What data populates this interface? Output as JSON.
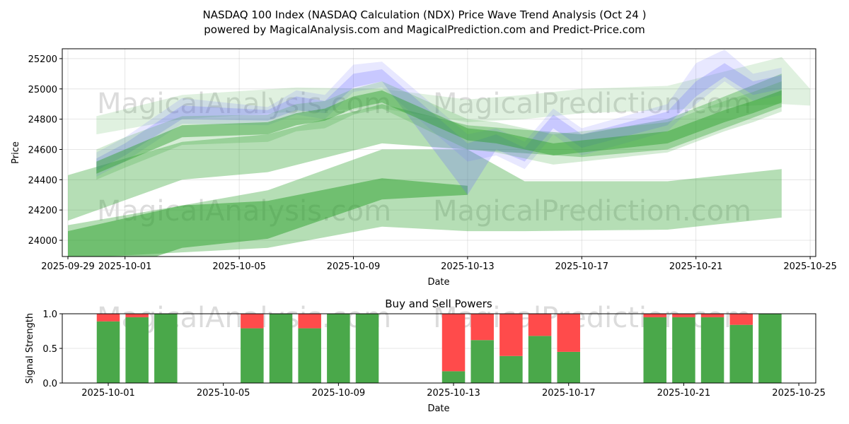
{
  "title": "NASDAQ 100 Index (NASDAQ Calculation (NDX) Price Wave Trend Analysis (Oct 24 )",
  "subtitle": "powered by MagicalAnalysis.com and MagicalPrediction.com and Predict-Price.com",
  "watermarks": [
    "MagicalAnalysis.com",
    "MagicalPrediction.com"
  ],
  "chart_data": [
    {
      "type": "area",
      "title": "",
      "xlabel": "Date",
      "ylabel": "Price",
      "ylim": [
        23893,
        25265
      ],
      "xlim": [
        "2025-09-28",
        "2025-10-25"
      ],
      "grid": true,
      "xticks": [
        "2025-09-29",
        "2025-10-01",
        "2025-10-05",
        "2025-10-09",
        "2025-10-13",
        "2025-10-17",
        "2025-10-21",
        "2025-10-25"
      ],
      "yticks": [
        24000,
        24200,
        24400,
        24600,
        24800,
        25000,
        25200
      ],
      "colors": {
        "green": "#2ca02c",
        "blue": "#6666ff"
      },
      "bands": [
        {
          "name": "wave-upper-light",
          "color": "green",
          "opacity": 0.15,
          "points": [
            [
              "2025-09-30",
              24700,
              24820
            ],
            [
              "2025-10-03",
              24800,
              24960
            ],
            [
              "2025-10-07",
              24850,
              25010
            ],
            [
              "2025-10-10",
              24870,
              25000
            ],
            [
              "2025-10-13",
              24780,
              24930
            ],
            [
              "2025-10-15",
              24800,
              24960
            ],
            [
              "2025-10-17",
              24840,
              25000
            ],
            [
              "2025-10-20",
              24860,
              25020
            ],
            [
              "2025-10-24",
              24900,
              25210
            ],
            [
              "2025-10-25",
              24890,
              25000
            ]
          ]
        },
        {
          "name": "wave-mid-light",
          "color": "green",
          "opacity": 0.35,
          "points": [
            [
              "2025-09-29",
              24130,
              24430
            ],
            [
              "2025-10-03",
              24400,
              24650
            ],
            [
              "2025-10-06",
              24450,
              24700
            ],
            [
              "2025-10-10",
              24640,
              24900
            ],
            [
              "2025-10-13",
              24600,
              24760
            ],
            [
              "2025-10-17",
              24550,
              24700
            ],
            [
              "2025-10-20",
              24600,
              24800
            ],
            [
              "2025-10-24",
              24880,
              25100
            ]
          ]
        },
        {
          "name": "wave-low-light",
          "color": "green",
          "opacity": 0.35,
          "points": [
            [
              "2025-09-29",
              23880,
              24100
            ],
            [
              "2025-10-03",
              23920,
              24230
            ],
            [
              "2025-10-06",
              23950,
              24330
            ],
            [
              "2025-10-10",
              24090,
              24600
            ],
            [
              "2025-10-13",
              24060,
              24600
            ],
            [
              "2025-10-15",
              24060,
              24390
            ],
            [
              "2025-10-20",
              24070,
              24390
            ],
            [
              "2025-10-22",
              24110,
              24430
            ],
            [
              "2025-10-24",
              24150,
              24470
            ]
          ]
        },
        {
          "name": "wave-low-dark",
          "color": "green",
          "opacity": 0.5,
          "points": [
            [
              "2025-09-29",
              23700,
              24060
            ],
            [
              "2025-10-03",
              23950,
              24230
            ],
            [
              "2025-10-06",
              24010,
              24260
            ],
            [
              "2025-10-10",
              24270,
              24410
            ],
            [
              "2025-10-13",
              24300,
              24360
            ]
          ]
        },
        {
          "name": "wave-blue-wide",
          "color": "blue",
          "opacity": 0.15,
          "points": [
            [
              "2025-09-30",
              24420,
              24580
            ],
            [
              "2025-10-01",
              24520,
              24680
            ],
            [
              "2025-10-03",
              24770,
              24940
            ],
            [
              "2025-10-06",
              24760,
              24880
            ],
            [
              "2025-10-07",
              24830,
              24990
            ],
            [
              "2025-10-08",
              24800,
              24960
            ],
            [
              "2025-10-09",
              24980,
              25160
            ],
            [
              "2025-10-10",
              25010,
              25180
            ],
            [
              "2025-10-13",
              24520,
              24700
            ],
            [
              "2025-10-14",
              24560,
              24740
            ],
            [
              "2025-10-15",
              24470,
              24650
            ],
            [
              "2025-10-16",
              24700,
              24870
            ],
            [
              "2025-10-17",
              24560,
              24740
            ],
            [
              "2025-10-20",
              24720,
              24900
            ],
            [
              "2025-10-21",
              24900,
              25170
            ],
            [
              "2025-10-22",
              25050,
              25260
            ],
            [
              "2025-10-23",
              24920,
              25100
            ],
            [
              "2025-10-24",
              24960,
              25140
            ]
          ]
        },
        {
          "name": "wave-blue-core",
          "color": "blue",
          "opacity": 0.25,
          "points": [
            [
              "2025-09-30",
              24460,
              24540
            ],
            [
              "2025-10-01",
              24560,
              24640
            ],
            [
              "2025-10-03",
              24800,
              24890
            ],
            [
              "2025-10-06",
              24790,
              24860
            ],
            [
              "2025-10-07",
              24860,
              24950
            ],
            [
              "2025-10-08",
              24840,
              24920
            ],
            [
              "2025-10-09",
              25010,
              25100
            ],
            [
              "2025-10-10",
              25050,
              25130
            ],
            [
              "2025-10-13",
              24300,
              24640
            ],
            [
              "2025-10-14",
              24600,
              24700
            ],
            [
              "2025-10-15",
              24520,
              24610
            ],
            [
              "2025-10-16",
              24740,
              24830
            ],
            [
              "2025-10-17",
              24610,
              24700
            ],
            [
              "2025-10-20",
              24760,
              24850
            ],
            [
              "2025-10-21",
              24950,
              25050
            ],
            [
              "2025-10-22",
              25080,
              25170
            ],
            [
              "2025-10-23",
              24960,
              25050
            ],
            [
              "2025-10-24",
              25000,
              25090
            ]
          ]
        },
        {
          "name": "wave-green-wide",
          "color": "green",
          "opacity": 0.2,
          "points": [
            [
              "2025-09-30",
              24400,
              24600
            ],
            [
              "2025-10-01",
              24480,
              24680
            ],
            [
              "2025-10-03",
              24630,
              24820
            ],
            [
              "2025-10-06",
              24650,
              24830
            ],
            [
              "2025-10-07",
              24720,
              24900
            ],
            [
              "2025-10-08",
              24740,
              24920
            ],
            [
              "2025-10-09",
              24830,
              25000
            ],
            [
              "2025-10-10",
              24870,
              25050
            ],
            [
              "2025-10-13",
              24600,
              24800
            ],
            [
              "2025-10-14",
              24580,
              24780
            ],
            [
              "2025-10-15",
              24540,
              24740
            ],
            [
              "2025-10-16",
              24500,
              24700
            ],
            [
              "2025-10-17",
              24520,
              24720
            ],
            [
              "2025-10-20",
              24580,
              24780
            ],
            [
              "2025-10-21",
              24650,
              24850
            ],
            [
              "2025-10-22",
              24720,
              24920
            ],
            [
              "2025-10-23",
              24780,
              24980
            ],
            [
              "2025-10-24",
              24850,
              25050
            ]
          ]
        },
        {
          "name": "wave-green-core",
          "color": "green",
          "opacity": 0.45,
          "points": [
            [
              "2025-09-30",
              24440,
              24520
            ],
            [
              "2025-10-01",
              24520,
              24600
            ],
            [
              "2025-10-03",
              24680,
              24760
            ],
            [
              "2025-10-06",
              24700,
              24780
            ],
            [
              "2025-10-07",
              24760,
              24840
            ],
            [
              "2025-10-08",
              24790,
              24870
            ],
            [
              "2025-10-09",
              24870,
              24950
            ],
            [
              "2025-10-10",
              24910,
              24990
            ],
            [
              "2025-10-13",
              24660,
              24740
            ],
            [
              "2025-10-14",
              24640,
              24720
            ],
            [
              "2025-10-15",
              24600,
              24680
            ],
            [
              "2025-10-16",
              24560,
              24640
            ],
            [
              "2025-10-17",
              24580,
              24660
            ],
            [
              "2025-10-20",
              24640,
              24720
            ],
            [
              "2025-10-21",
              24710,
              24790
            ],
            [
              "2025-10-22",
              24780,
              24860
            ],
            [
              "2025-10-23",
              24840,
              24920
            ],
            [
              "2025-10-24",
              24910,
              24990
            ]
          ]
        }
      ]
    },
    {
      "type": "bar",
      "title": "Buy and Sell Powers",
      "xlabel": "Date",
      "ylabel": "Signal Strength",
      "ylim": [
        0,
        1
      ],
      "xlim": [
        "2025-09-29",
        "2025-10-25"
      ],
      "yticks": [
        "0.0",
        "0.5",
        "1.0"
      ],
      "xticks": [
        "2025-10-01",
        "2025-10-05",
        "2025-10-09",
        "2025-10-13",
        "2025-10-17",
        "2025-10-21",
        "2025-10-25"
      ],
      "colors": {
        "buy": "#4aa84a",
        "sell": "#ff4b4b"
      },
      "categories": [
        "2025-10-01",
        "2025-10-02",
        "2025-10-03",
        "2025-10-06",
        "2025-10-07",
        "2025-10-08",
        "2025-10-09",
        "2025-10-10",
        "2025-10-13",
        "2025-10-14",
        "2025-10-15",
        "2025-10-16",
        "2025-10-17",
        "2025-10-20",
        "2025-10-21",
        "2025-10-22",
        "2025-10-23",
        "2025-10-24"
      ],
      "series": [
        {
          "name": "Buy",
          "values": [
            0.89,
            0.95,
            1.0,
            0.79,
            1.0,
            0.79,
            1.0,
            1.0,
            0.17,
            0.62,
            0.39,
            0.68,
            0.45,
            0.95,
            0.95,
            0.95,
            0.84,
            1.0
          ]
        },
        {
          "name": "Sell",
          "values": [
            0.11,
            0.05,
            0.0,
            0.21,
            0.0,
            0.21,
            0.0,
            0.0,
            0.83,
            0.38,
            0.61,
            0.32,
            0.55,
            0.05,
            0.05,
            0.05,
            0.16,
            0.0
          ]
        }
      ]
    }
  ]
}
